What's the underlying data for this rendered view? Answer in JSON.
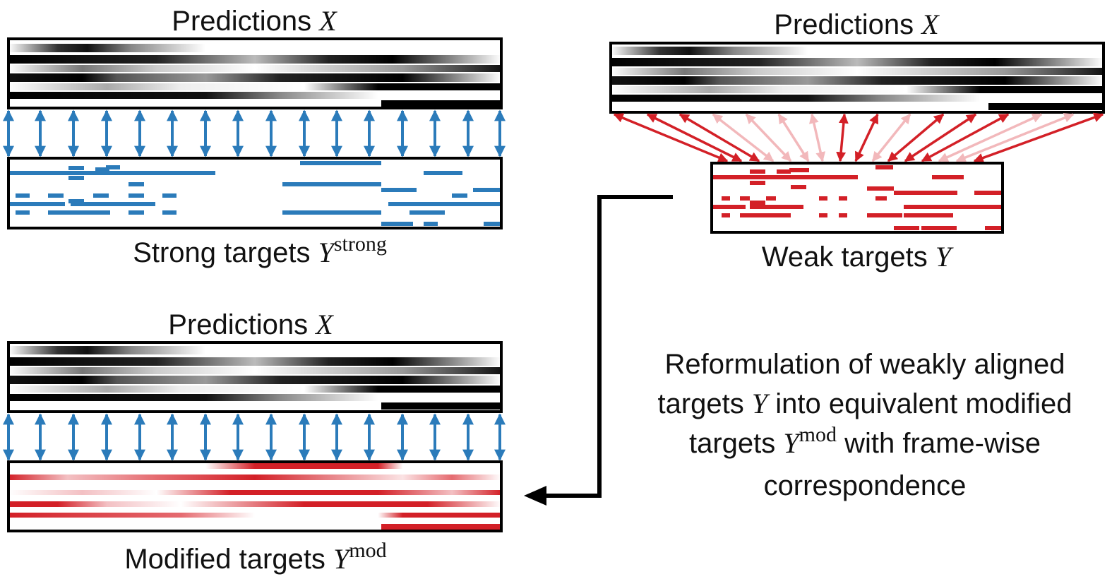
{
  "left_top": {
    "predictions_label": "Predictions",
    "predictions_symbol": "X",
    "targets_label": "Strong targets",
    "targets_symbol": "Y",
    "targets_superscript": "strong"
  },
  "right_top": {
    "predictions_label": "Predictions",
    "predictions_symbol": "X",
    "targets_label": "Weak targets",
    "targets_symbol": "Y"
  },
  "left_bottom": {
    "predictions_label": "Predictions",
    "predictions_symbol": "X",
    "targets_label": "Modified targets",
    "targets_symbol": "Y",
    "targets_superscript": "mod"
  },
  "description": {
    "line1": "Reformulation of weakly aligned",
    "line2_pre": "targets",
    "line2_symbol": "Y",
    "line2_post": "into equivalent modified",
    "line3_pre": "targets",
    "line3_symbol": "Y",
    "line3_superscript": "mod",
    "line3_post": "with frame-wise",
    "line4": "correspondence"
  },
  "colors": {
    "strong_blue": "#2b7bba",
    "weak_red": "#d32027",
    "light_red": "#f2b8bb",
    "frame": "#000000"
  }
}
